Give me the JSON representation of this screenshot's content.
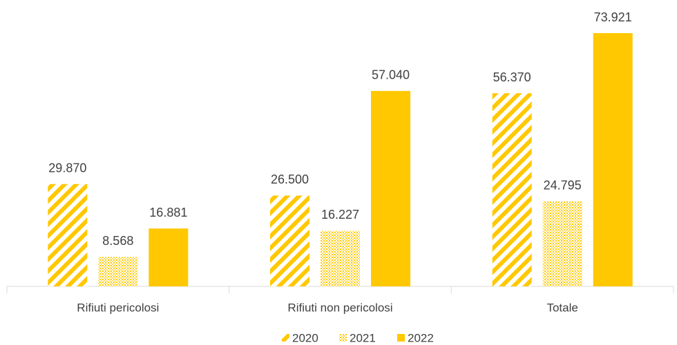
{
  "chart_data": {
    "type": "bar",
    "categories": [
      "Rifiuti pericolosi",
      "Rifiuti non pericolosi",
      "Totale"
    ],
    "series": [
      {
        "name": "2020",
        "color": "#ffc800",
        "pattern": "diagonal",
        "values": [
          29870,
          26500,
          56370
        ],
        "value_labels": [
          "29.870",
          "26.500",
          "56.370"
        ]
      },
      {
        "name": "2021",
        "color": "#ffc800",
        "pattern": "dots",
        "values": [
          8568,
          16227,
          24795
        ],
        "value_labels": [
          "8.568",
          "16.227",
          "24.795"
        ]
      },
      {
        "name": "2022",
        "color": "#ffc800",
        "pattern": "solid",
        "values": [
          16881,
          57040,
          73921
        ],
        "value_labels": [
          "16.881",
          "57.040",
          "73.921"
        ]
      }
    ],
    "legend": "bottom"
  }
}
